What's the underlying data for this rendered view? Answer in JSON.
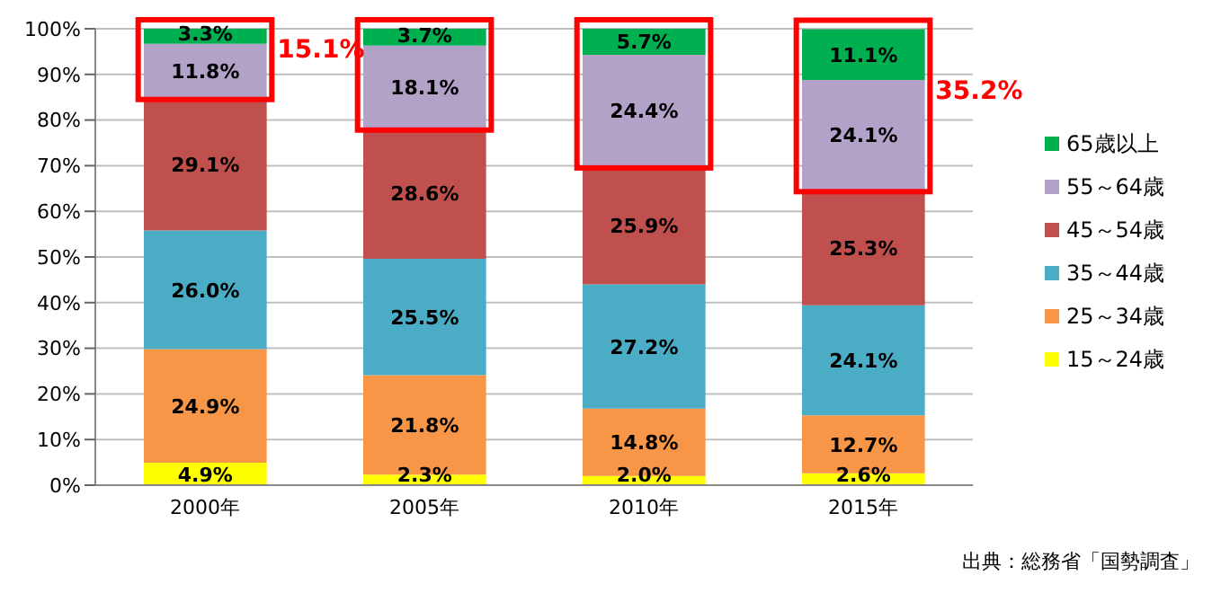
{
  "chart_data": {
    "type": "bar",
    "stacked": true,
    "categories": [
      "2000年",
      "2005年",
      "2010年",
      "2015年"
    ],
    "series": [
      {
        "name": "15～24歳",
        "color": "#ffff00",
        "values": [
          4.9,
          2.3,
          2.0,
          2.6
        ],
        "value_labels": [
          "4.9%",
          "2.3%",
          "2.0%",
          "2.6%"
        ]
      },
      {
        "name": "25～34歳",
        "color": "#f79646",
        "values": [
          24.9,
          21.8,
          14.8,
          12.7
        ],
        "value_labels": [
          "24.9%",
          "21.8%",
          "14.8%",
          "12.7%"
        ]
      },
      {
        "name": "35～44歳",
        "color": "#4bacc6",
        "values": [
          26.0,
          25.5,
          27.2,
          24.1
        ],
        "value_labels": [
          "26.0%",
          "25.5%",
          "27.2%",
          "24.1%"
        ]
      },
      {
        "name": "45～54歳",
        "color": "#c0504d",
        "values": [
          29.1,
          28.6,
          25.9,
          25.3
        ],
        "value_labels": [
          "29.1%",
          "28.6%",
          "25.9%",
          "25.3%"
        ]
      },
      {
        "name": "55～64歳",
        "color": "#b3a2c7",
        "values": [
          11.8,
          18.1,
          24.4,
          24.1
        ],
        "value_labels": [
          "11.8%",
          "18.1%",
          "24.4%",
          "24.1%"
        ]
      },
      {
        "name": "65歳以上",
        "color": "#00b050",
        "values": [
          3.3,
          3.7,
          5.7,
          11.1
        ],
        "value_labels": [
          "3.3%",
          "3.7%",
          "5.7%",
          "11.1%"
        ]
      }
    ],
    "ylim": [
      0,
      100
    ],
    "yticks": [
      {
        "value": 0,
        "label": "0%"
      },
      {
        "value": 10,
        "label": "10%"
      },
      {
        "value": 20,
        "label": "20%"
      },
      {
        "value": 30,
        "label": "30%"
      },
      {
        "value": 40,
        "label": "40%"
      },
      {
        "value": 50,
        "label": "50%"
      },
      {
        "value": 60,
        "label": "60%"
      },
      {
        "value": 70,
        "label": "70%"
      },
      {
        "value": 80,
        "label": "80%"
      },
      {
        "value": 90,
        "label": "90%"
      },
      {
        "value": 100,
        "label": "100%"
      }
    ],
    "grid": "y",
    "legend": "right",
    "annotations": [
      "15.1%",
      "35.2%",
      "出典：総務省「国勢調査」"
    ]
  }
}
